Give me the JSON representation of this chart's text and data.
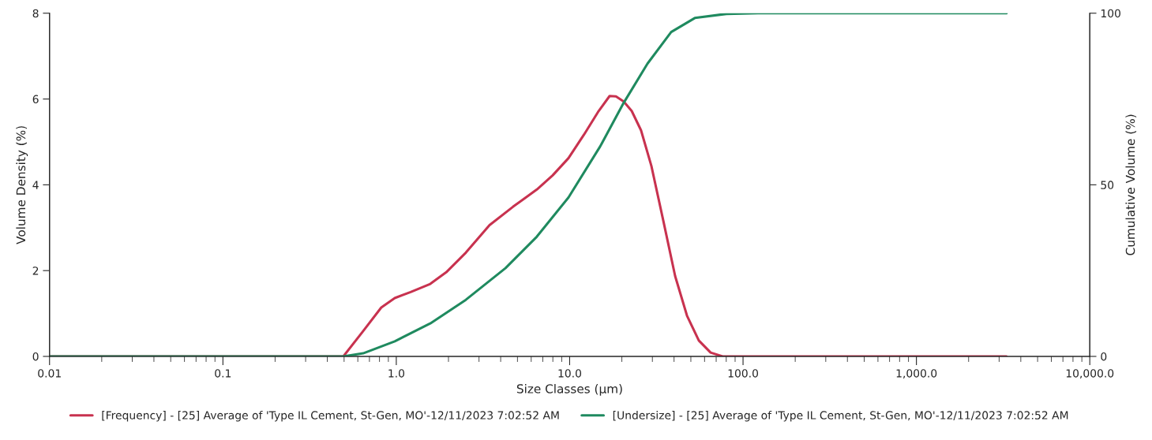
{
  "chart_data": {
    "type": "line",
    "xlabel": "Size Classes (µm)",
    "ylabel": "Volume Density (%)",
    "y2label": "Cumulative Volume (%)",
    "log": "x",
    "grid": false,
    "legend": "bottom",
    "line_style": "solid",
    "marker": "none",
    "xlim": [
      0.01,
      10000
    ],
    "xticks": [
      0.01,
      0.1,
      {
        "value": 1,
        "label": "1.0"
      },
      {
        "value": 10,
        "label": "10.0"
      },
      {
        "value": 100,
        "label": "100.0"
      },
      {
        "value": 1000,
        "label": "1,000.0"
      },
      {
        "value": 10000,
        "label": "10,000.0"
      }
    ],
    "ylim": [
      0,
      8
    ],
    "yticks": [
      0,
      2,
      4,
      6,
      8
    ],
    "y2lim": [
      0,
      100
    ],
    "y2ticks": [
      0,
      50,
      100
    ],
    "series": [
      {
        "name": "[Frequency] - [25] Average of 'Type IL Cement, St-Gen, MO'-12/11/2023 7:02:52 AM",
        "color": "#c8324f",
        "x": [
          0.01,
          0.495,
          0.644,
          0.819,
          0.98,
          1.21,
          1.57,
          1.94,
          2.52,
          3.45,
          4.72,
          6.47,
          7.98,
          9.84,
          12.1,
          14.7,
          17.0,
          18.5,
          20.5,
          22.8,
          25.8,
          29.6,
          34.7,
          40.6,
          47.5,
          55.6,
          65.0,
          76.2,
          89,
          3310
        ],
        "values": [
          0,
          0,
          0.59,
          1.14,
          1.36,
          1.5,
          1.69,
          1.96,
          2.42,
          3.06,
          3.49,
          3.89,
          4.22,
          4.62,
          5.17,
          5.72,
          6.07,
          6.06,
          5.94,
          5.72,
          5.27,
          4.44,
          3.16,
          1.87,
          0.95,
          0.37,
          0.09,
          0,
          0,
          0
        ]
      },
      {
        "name": "[Undersize] - [25] Average of 'Type IL Cement, St-Gen, MO'-12/11/2023 7:02:52 AM",
        "color": "#1f8a5f",
        "axis": "y2",
        "x": [
          0.01,
          0.495,
          0.644,
          0.98,
          1.57,
          2.52,
          4.26,
          6.47,
          9.84,
          15.0,
          20.5,
          28.1,
          38.5,
          52.7,
          80.2,
          122,
          3310
        ],
        "values": [
          0,
          0,
          0.9,
          4.4,
          9.6,
          16.5,
          25.7,
          34.9,
          46.3,
          61.2,
          73.9,
          85.3,
          94.5,
          98.6,
          99.8,
          100,
          100
        ]
      }
    ]
  }
}
